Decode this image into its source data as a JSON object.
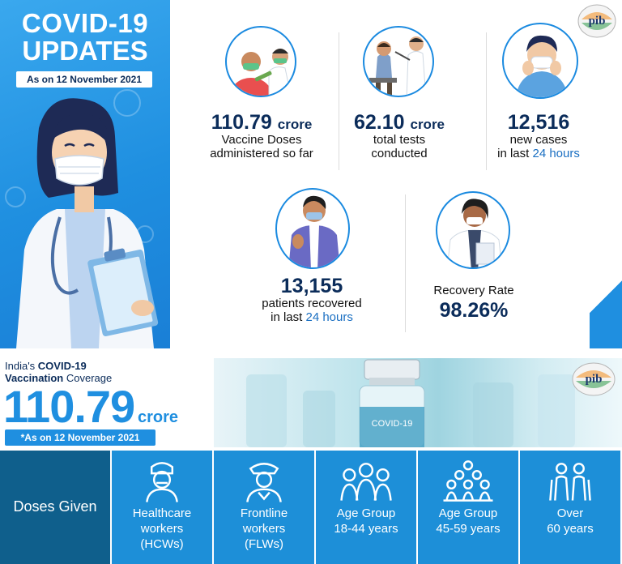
{
  "updates": {
    "title_line1": "COVID-19",
    "title_line2": "UPDATES",
    "as_on": "As on 12 November 2021",
    "logo_text": "pib",
    "stats": [
      {
        "number": "110.79",
        "unit": "crore",
        "line1": "Vaccine Doses",
        "line2": "administered so far"
      },
      {
        "number": "62.10",
        "unit": "crore",
        "line1": "total tests",
        "line2": "conducted"
      },
      {
        "number": "12,516",
        "unit": "",
        "line1": "new cases",
        "line2_prefix": "in last ",
        "line2_highlight": "24 hours"
      },
      {
        "number": "13,155",
        "unit": "",
        "line1": "patients recovered",
        "line2_prefix": "in last ",
        "line2_highlight": "24 hours"
      },
      {
        "label": "Recovery Rate",
        "number": "98.26%"
      }
    ]
  },
  "coverage": {
    "label_prefix": "India's ",
    "label_bold1": "COVID-19",
    "label_bold2": "Vaccination",
    "label_suffix": " Coverage",
    "number": "110.79",
    "unit": "crore",
    "as_on": "*As on 12 November 2021",
    "vial_text": "COVID-19",
    "logo_text": "pib",
    "doses_given": "Doses Given",
    "categories": [
      {
        "line1": "Healthcare",
        "line2": "workers",
        "line3": "(HCWs)",
        "icon": "healthcare-worker-icon"
      },
      {
        "line1": "Frontline",
        "line2": "workers",
        "line3": "(FLWs)",
        "icon": "frontline-worker-icon"
      },
      {
        "line1": "Age Group",
        "line2": "18-44 years",
        "line3": "",
        "icon": "group-18-44-icon"
      },
      {
        "line1": "Age Group",
        "line2": "45-59 years",
        "line3": "",
        "icon": "group-45-59-icon"
      },
      {
        "line1": "Over",
        "line2": "60 years",
        "line3": "",
        "icon": "elderly-icon"
      }
    ]
  }
}
